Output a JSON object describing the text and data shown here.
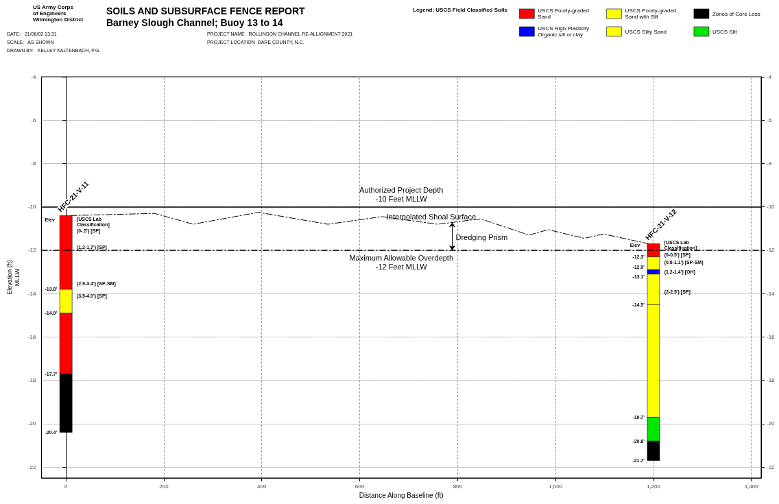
{
  "chart_data": {
    "type": "bar",
    "title": "SOILS AND SUBSURFACE FENCE REPORT",
    "subtitle": "Barney Slough Channel; Buoy 13 to 14",
    "xlabel": "Distance Along Baseline (ft)",
    "ylabel": "Elevation (ft)\nMLLW",
    "legend_title": "Legend: USCS Field Classified Soils",
    "legend": "top right",
    "grid": true,
    "xlim": [
      -50,
      1420
    ],
    "xticks": [
      0,
      200,
      400,
      600,
      800,
      {
        "value": 1000,
        "label": "1,000"
      },
      {
        "value": 1200,
        "label": "1,200"
      },
      {
        "value": 1400,
        "label": "1,400"
      }
    ],
    "ylim": [
      -22.5,
      -4
    ],
    "yticks": [
      -22,
      -20,
      -18,
      -16,
      -14,
      -12,
      -10,
      -8,
      -6,
      -4
    ],
    "y2lim": [
      -22.5,
      -4
    ],
    "y2ticks": [
      -22,
      -20,
      -18,
      -16,
      -14,
      -12,
      -10,
      -8,
      -6,
      -4
    ],
    "series": [
      {
        "name": "USCS Poorly-graded Sand",
        "color": "#ff0000",
        "x": [
          0,
          1200
        ],
        "base": [
          -10.4,
          -11.7
        ],
        "values": [
          -3.4,
          -0.6
        ]
      },
      {
        "name": "USCS Poorly-graded Sand with Silt",
        "color": "#ffff00",
        "x": [
          0,
          1200
        ],
        "base": [
          -13.8,
          -12.3
        ],
        "values": [
          -1.1,
          -0.6
        ]
      },
      {
        "name": "Zones of Core Loss",
        "color": "#000000",
        "x": [
          0,
          1200
        ],
        "base": [
          -17.7,
          -20.8
        ],
        "values": [
          -2.7,
          -0.9
        ]
      },
      {
        "name": "USCS High Plasticity Organic silt or clay",
        "color": "#0000ff",
        "x": [
          1200
        ],
        "base": [
          -12.9
        ],
        "values": [
          -0.2
        ]
      },
      {
        "name": "USCS Silty Sand",
        "color": "#ffff00",
        "x": [
          1200
        ],
        "base": [
          -14.5
        ],
        "values": [
          -5.2
        ]
      },
      {
        "name": "USCS Silt",
        "color": "#00e600",
        "x": [
          1200
        ],
        "base": [
          -19.7
        ],
        "values": [
          -1.1
        ]
      },
      {
        "color": "#ff0000",
        "x": [
          0
        ],
        "base": [
          -14.9
        ],
        "values": [
          -2.8
        ]
      },
      {
        "color": "#ffff00",
        "x": [
          1200
        ],
        "base": [
          -13.1
        ],
        "values": [
          -1.4
        ]
      },
      {
        "type": "line",
        "color": "#000000",
        "line_style": "dashed",
        "marker": "none",
        "x": [
          10,
          181,
          260,
          393,
          535,
          645,
          759,
          847,
          946,
          985,
          1059,
          1098,
          1190
        ],
        "values": [
          -10.4,
          -10.3,
          -10.8,
          -10.25,
          -10.8,
          -10.45,
          -10.8,
          -10.55,
          -11.3,
          -11.05,
          -11.45,
          -11.25,
          -11.7
        ]
      }
    ],
    "ref_lines": [
      {
        "axis": "y",
        "value": -10,
        "label": "Authorized Project Depth\n-10 Feet MLLW",
        "color": "#000000",
        "line_style": "solid"
      },
      {
        "axis": "y",
        "value": -12,
        "label": "Maximum Allowable Overdepth\n-12 Feet MLLW",
        "color": "#000000",
        "line_style": "dashed"
      }
    ],
    "annotations": [
      "US Army Corps\nof Engineers\nWilmington District",
      "DATE:   21/06/02 13:31",
      "SCALE:   AS SHOWN",
      "DRAWN BY:   KELLEY KALTENBACH, P.G.",
      "PROJECT NAME   ROLLINSON CHANNEL RE-ALLIGNMENT 2021",
      "PROJECT LOCATION  DARE COUNTY, N.C.",
      "Dredging Prism",
      "Elev",
      "[USCS Lab\nClassification]",
      "(0-.5') [SP]",
      "(1.2-1.7') [SP]",
      "(2.9-3.4') [SP-SM]",
      "(3.5-4.0') [SP]",
      "Elev",
      "[USCS Lab\nClassification]",
      "(0-0.5') [SP]",
      "(0.6-1.1') [SP-SM]",
      "(1.2-1.4') [OH]",
      "(2-2.5') [SP]",
      {
        "text": "HFC-21-V-11",
        "x": 0,
        "y": -10.4
      },
      {
        "text": "HFC-21-V-12",
        "x": 1200,
        "y": -11.7
      },
      {
        "text": "Interpolated Shoal Surface",
        "x": 655,
        "y": -10.45
      },
      {
        "text": "-13.8'",
        "x": 0,
        "y": -13.8
      },
      {
        "text": "-14.9'",
        "x": 0,
        "y": -14.9
      },
      {
        "text": "-17.7'",
        "x": 0,
        "y": -17.7
      },
      {
        "text": "-20.4'",
        "x": 0,
        "y": -20.4
      },
      {
        "text": "-12.3'",
        "x": 1200,
        "y": -12.3
      },
      {
        "text": "-12.9'",
        "x": 1200,
        "y": -12.9
      },
      {
        "text": "-13.1'",
        "x": 1200,
        "y": -13.1
      },
      {
        "text": "-14.5'",
        "x": 1200,
        "y": -14.5
      },
      {
        "text": "-19.7'",
        "x": 1200,
        "y": -19.7
      },
      {
        "text": "-20.8'",
        "x": 1200,
        "y": -20.8
      },
      {
        "text": "-21.7'",
        "x": 1200,
        "y": -21.7
      }
    ]
  }
}
